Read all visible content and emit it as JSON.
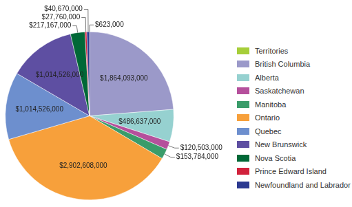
{
  "chart_data": {
    "type": "pie",
    "categories": [
      "Territories",
      "British Columbia",
      "Alberta",
      "Saskatchewan",
      "Manitoba",
      "Ontario",
      "Quebec",
      "New Brunswick",
      "Nova Scotia",
      "Prince Edward Island",
      "Newfoundland and Labrador"
    ],
    "values": [
      623000,
      1864093000,
      486637000,
      120503000,
      153784000,
      2902608000,
      1014526000,
      1014526000,
      217167000,
      27760000,
      40670000
    ],
    "value_labels": [
      "$623,000",
      "$1,864,093,000",
      "$486,637,000",
      "$120,503,000",
      "$153,784,000",
      "$2,902,608,000",
      "$1,014,526,000",
      "$1,014,526,000",
      "$217,167,000",
      "$27,760,000",
      "$40,670,000"
    ],
    "colors": [
      "#a6ce39",
      "#9b99c9",
      "#96d1d0",
      "#b5509c",
      "#3a9c6a",
      "#f7a03b",
      "#6d8fce",
      "#5e4fa2",
      "#006837",
      "#d1223c",
      "#2b3990"
    ],
    "legend": "right",
    "data_labels": true
  }
}
